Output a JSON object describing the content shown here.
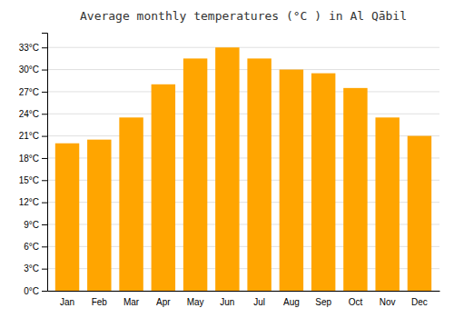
{
  "chart_data": {
    "type": "bar",
    "title": "Average monthly temperatures (°C ) in Al Qābil",
    "categories": [
      "Jan",
      "Feb",
      "Mar",
      "Apr",
      "May",
      "Jun",
      "Jul",
      "Aug",
      "Sep",
      "Oct",
      "Nov",
      "Dec"
    ],
    "values": [
      20.0,
      20.5,
      23.5,
      28.0,
      31.5,
      33.0,
      31.5,
      30.0,
      29.5,
      27.5,
      23.5,
      21.0
    ],
    "color": "#FFA500",
    "ylim": [
      0,
      35
    ],
    "yticks": [
      {
        "value": 0,
        "label": "0°C"
      },
      {
        "value": 3,
        "label": "3°C"
      },
      {
        "value": 6,
        "label": "6°C"
      },
      {
        "value": 9,
        "label": "9°C"
      },
      {
        "value": 12,
        "label": "12°C"
      },
      {
        "value": 15,
        "label": "15°C"
      },
      {
        "value": 18,
        "label": "18°C"
      },
      {
        "value": 21,
        "label": "21°C"
      },
      {
        "value": 24,
        "label": "24°C"
      },
      {
        "value": 27,
        "label": "27°C"
      },
      {
        "value": 30,
        "label": "30°C"
      },
      {
        "value": 33,
        "label": "33°C"
      }
    ],
    "grid": true
  }
}
